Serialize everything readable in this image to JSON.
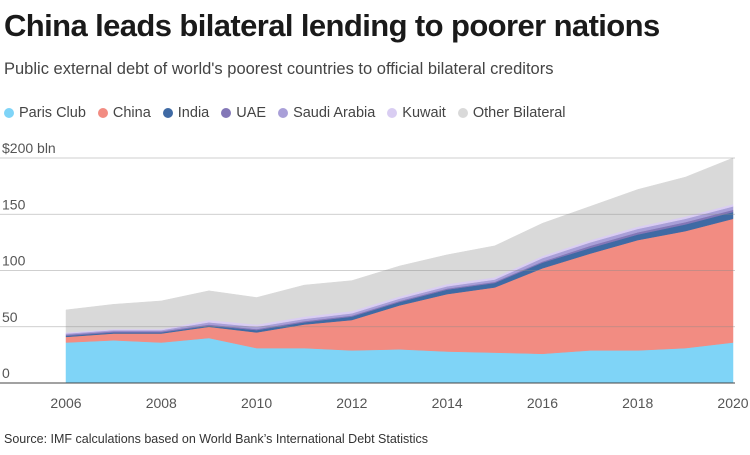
{
  "header": {
    "title": "China leads bilateral lending to poorer nations",
    "subtitle": "Public external debt of world's poorest countries to official bilateral creditors"
  },
  "footer": {
    "source": "Source: IMF calculations based on World Bank’s International Debt Statistics"
  },
  "chart_data": {
    "type": "area",
    "stacked": true,
    "x": [
      2006,
      2007,
      2008,
      2009,
      2010,
      2011,
      2012,
      2013,
      2014,
      2015,
      2016,
      2017,
      2018,
      2019,
      2020
    ],
    "x_tick_labels": [
      "2006",
      "2008",
      "2010",
      "2012",
      "2014",
      "2016",
      "2018",
      "2020"
    ],
    "y_tick_labels": [
      "$200 bln",
      "150",
      "100",
      "50",
      "0"
    ],
    "y_ticks": [
      200,
      150,
      100,
      50,
      0
    ],
    "ylim": [
      0,
      200
    ],
    "grid": true,
    "legend_position": "top",
    "series": [
      {
        "name": "Paris Club",
        "color": "#7fd4f7",
        "values": [
          36,
          38,
          36,
          40,
          31,
          31,
          29,
          30,
          28,
          27,
          26,
          29,
          29,
          31,
          36
        ]
      },
      {
        "name": "China",
        "color": "#f28c82",
        "values": [
          5,
          6,
          8,
          10,
          14,
          21,
          27,
          39,
          51,
          58,
          76,
          86,
          98,
          104,
          110
        ]
      },
      {
        "name": "India",
        "color": "#3f6aa4",
        "values": [
          1,
          1,
          1,
          1,
          2,
          2,
          3,
          3,
          4,
          4,
          5,
          5,
          5,
          6,
          6
        ]
      },
      {
        "name": "UAE",
        "color": "#8377b7",
        "values": [
          1,
          1,
          1,
          1,
          1,
          1,
          1,
          1,
          1,
          1,
          1,
          2,
          2,
          2,
          2
        ]
      },
      {
        "name": "Saudi Arabia",
        "color": "#a99fd8",
        "values": [
          1,
          1,
          1,
          2,
          2,
          2,
          2,
          2,
          2,
          2,
          3,
          3,
          3,
          3,
          3
        ]
      },
      {
        "name": "Kuwait",
        "color": "#d9cdf2",
        "values": [
          1,
          1,
          1,
          2,
          2,
          2,
          2,
          2,
          2,
          2,
          2,
          2,
          2,
          2,
          2
        ]
      },
      {
        "name": "Other Bilateral",
        "color": "#d9d9d9",
        "values": [
          20,
          22,
          25,
          26,
          24,
          28,
          27,
          27,
          26,
          28,
          29,
          30,
          33,
          35,
          41
        ]
      }
    ]
  }
}
